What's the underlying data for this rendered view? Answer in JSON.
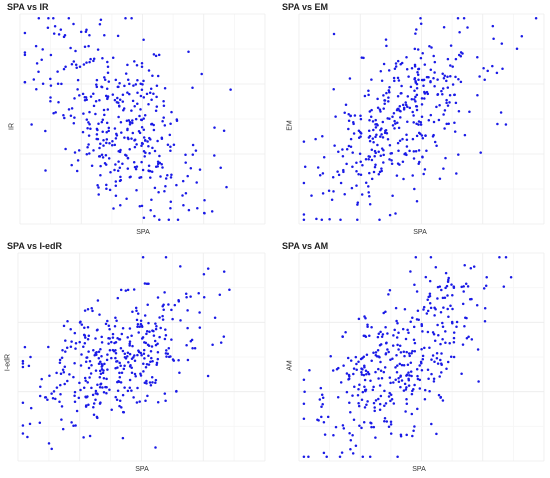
{
  "chart_data": [
    {
      "type": "scatter",
      "title": "SPA vs IR",
      "xlabel": "SPA",
      "ylabel": "IR",
      "grid": true,
      "point_color": "#1a1ae6",
      "n_points": 400,
      "correlation": "negative"
    },
    {
      "type": "scatter",
      "title": "SPA vs EM",
      "xlabel": "SPA",
      "ylabel": "EM",
      "grid": true,
      "point_color": "#1a1ae6",
      "n_points": 400,
      "correlation": "positive"
    },
    {
      "type": "scatter",
      "title": "SPA vs I-edR",
      "xlabel": "SPA",
      "ylabel": "I-edR",
      "grid": true,
      "point_color": "#1a1ae6",
      "n_points": 400,
      "correlation": "positive"
    },
    {
      "type": "scatter",
      "title": "SPA vs AM",
      "xlabel": "SPA",
      "ylabel": "AM",
      "grid": true,
      "point_color": "#1a1ae6",
      "n_points": 400,
      "correlation": "positive"
    }
  ]
}
